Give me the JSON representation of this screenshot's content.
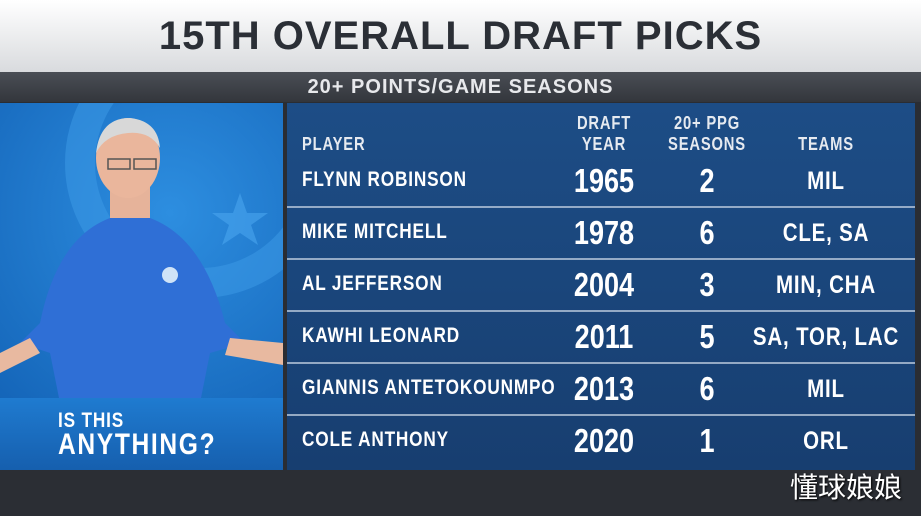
{
  "header": {
    "title": "15TH OVERALL DRAFT PICKS",
    "subtitle": "20+ POINTS/GAME SEASONS"
  },
  "table": {
    "columns": [
      "PLAYER",
      "DRAFT YEAR",
      "20+ PPG SEASONS",
      "TEAMS"
    ],
    "rows": [
      [
        "FLYNN ROBINSON",
        "1965",
        "2",
        "MIL"
      ],
      [
        "MIKE MITCHELL",
        "1978",
        "6",
        "CLE, SA"
      ],
      [
        "AL JEFFERSON",
        "2004",
        "3",
        "MIN, CHA"
      ],
      [
        "KAWHI LEONARD",
        "2011",
        "5",
        "SA, TOR, LAC"
      ],
      [
        "GIANNIS ANTETOKOUNMPO",
        "2013",
        "6",
        "MIL"
      ],
      [
        "COLE ANTHONY",
        "2020",
        "1",
        "ORL"
      ]
    ]
  },
  "side_panel": {
    "line1": "IS THIS",
    "line2": "ANYTHING?"
  },
  "watermark": "懂球娘娘"
}
